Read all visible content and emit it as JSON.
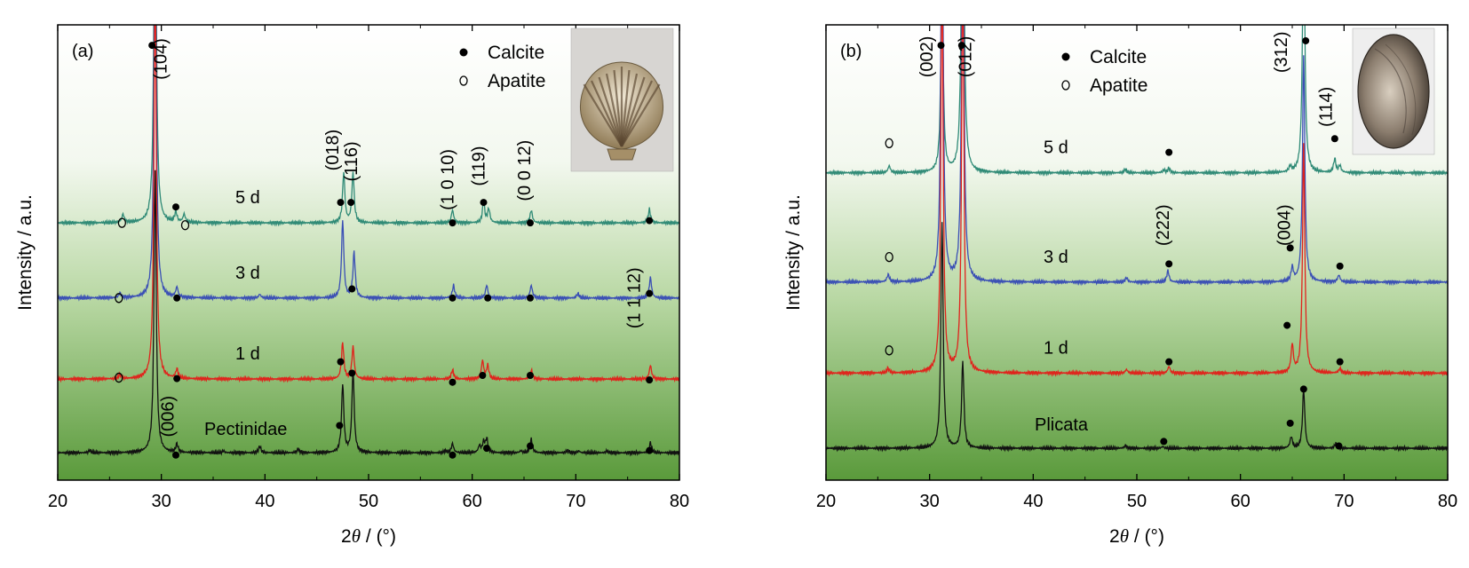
{
  "chart_data": [
    {
      "type": "line",
      "panel_label": "(a)",
      "x_range": [
        20,
        80
      ],
      "x_ticks": [
        "20",
        "30",
        "40",
        "50",
        "60",
        "70",
        "80"
      ],
      "xlabel_symbol": "2",
      "xlabel_theta": "θ",
      "xlabel_unit": " / (°)",
      "ylabel": "Intensity / a.u.",
      "grid": false,
      "legend_position": "top-right",
      "legend": {
        "filled_label": "Calcite",
        "open_label": "Apatite"
      },
      "series": [
        {
          "name": "5 d",
          "color": "#2f8a76",
          "baseline_frac": 0.435,
          "peaks": [
            [
              26.3,
              0.018
            ],
            [
              29.4,
              0.9
            ],
            [
              31.4,
              0.022
            ],
            [
              32.2,
              0.018
            ],
            [
              47.6,
              0.11
            ],
            [
              48.5,
              0.11
            ],
            [
              58.1,
              0.028
            ],
            [
              61.1,
              0.045
            ],
            [
              61.6,
              0.03
            ],
            [
              65.7,
              0.028
            ],
            [
              77.1,
              0.03
            ]
          ]
        },
        {
          "name": "3 d",
          "color": "#3a4fb5",
          "baseline_frac": 0.6,
          "peaks": [
            [
              26.0,
              0.01
            ],
            [
              29.4,
              0.9
            ],
            [
              31.5,
              0.022
            ],
            [
              39.5,
              0.008
            ],
            [
              47.5,
              0.17
            ],
            [
              48.6,
              0.1
            ],
            [
              58.2,
              0.028
            ],
            [
              61.4,
              0.028
            ],
            [
              65.7,
              0.028
            ],
            [
              70.2,
              0.01
            ],
            [
              77.2,
              0.045
            ]
          ]
        },
        {
          "name": "1 d",
          "color": "#e0231c",
          "baseline_frac": 0.778,
          "peaks": [
            [
              26.0,
              0.01
            ],
            [
              29.4,
              0.9
            ],
            [
              31.5,
              0.02
            ],
            [
              47.5,
              0.08
            ],
            [
              48.5,
              0.07
            ],
            [
              58.1,
              0.02
            ],
            [
              61.0,
              0.04
            ],
            [
              61.5,
              0.03
            ],
            [
              65.7,
              0.02
            ],
            [
              77.2,
              0.03
            ]
          ]
        },
        {
          "name": "Pectinidae",
          "color": "#111111",
          "baseline_frac": 0.94,
          "peaks": [
            [
              23.1,
              0.005
            ],
            [
              29.4,
              0.62
            ],
            [
              31.5,
              0.018
            ],
            [
              36.0,
              0.004
            ],
            [
              39.5,
              0.014
            ],
            [
              43.2,
              0.008
            ],
            [
              47.5,
              0.15
            ],
            [
              48.5,
              0.18
            ],
            [
              57.4,
              0.004
            ],
            [
              58.1,
              0.02
            ],
            [
              60.7,
              0.015
            ],
            [
              61.1,
              0.022
            ],
            [
              61.4,
              0.03
            ],
            [
              64.7,
              0.004
            ],
            [
              65.7,
              0.03
            ],
            [
              69.2,
              0.005
            ],
            [
              70.3,
              0.004
            ],
            [
              73.0,
              0.004
            ],
            [
              77.2,
              0.022
            ]
          ]
        }
      ],
      "hkl_labels": [
        {
          "text": "(104)",
          "x": 30.5,
          "y_frac": 0.075
        },
        {
          "text": "(018)",
          "x": 47.1,
          "y_frac": 0.275
        },
        {
          "text": "(116)",
          "x": 48.9,
          "y_frac": 0.3
        },
        {
          "text": "(1 0 10)",
          "x": 58.2,
          "y_frac": 0.34
        },
        {
          "text": "(119)",
          "x": 61.2,
          "y_frac": 0.31
        },
        {
          "text": "(0 0 12)",
          "x": 65.6,
          "y_frac": 0.32
        },
        {
          "text": "(1 1 12)",
          "x": 76.2,
          "y_frac": 0.6
        },
        {
          "text": "(006)",
          "x": 31.2,
          "y_frac": 0.86
        }
      ],
      "calcite_markers": [
        [
          29.1,
          0.045
        ],
        [
          31.4,
          0.4
        ],
        [
          47.3,
          0.39
        ],
        [
          48.3,
          0.39
        ],
        [
          58.1,
          0.435
        ],
        [
          61.1,
          0.39
        ],
        [
          65.6,
          0.435
        ],
        [
          77.1,
          0.43
        ],
        [
          31.5,
          0.6
        ],
        [
          48.4,
          0.58
        ],
        [
          58.1,
          0.6
        ],
        [
          61.5,
          0.6
        ],
        [
          65.6,
          0.6
        ],
        [
          77.1,
          0.59
        ],
        [
          31.5,
          0.777
        ],
        [
          47.3,
          0.74
        ],
        [
          48.4,
          0.765
        ],
        [
          58.1,
          0.785
        ],
        [
          61.0,
          0.77
        ],
        [
          65.6,
          0.77
        ],
        [
          77.1,
          0.78
        ],
        [
          31.4,
          0.945
        ],
        [
          47.2,
          0.88
        ],
        [
          58.1,
          0.945
        ],
        [
          61.4,
          0.93
        ],
        [
          65.6,
          0.925
        ],
        [
          77.1,
          0.935
        ]
      ],
      "apatite_markers": [
        [
          26.2,
          0.435
        ],
        [
          32.3,
          0.44
        ],
        [
          25.9,
          0.6
        ],
        [
          25.9,
          0.775
        ]
      ]
    },
    {
      "type": "line",
      "panel_label": "(b)",
      "x_range": [
        20,
        80
      ],
      "x_ticks": [
        "20",
        "30",
        "40",
        "50",
        "60",
        "70",
        "80"
      ],
      "xlabel_symbol": "2",
      "xlabel_theta": "θ",
      "xlabel_unit": " / (°)",
      "ylabel": "Intensity / a.u.",
      "grid": false,
      "legend_position": "top",
      "legend": {
        "filled_label": "Calcite",
        "open_label": "Apatite"
      },
      "series": [
        {
          "name": "5 d",
          "color": "#2f8a76",
          "baseline_frac": 0.325,
          "peaks": [
            [
              26.1,
              0.015
            ],
            [
              31.2,
              0.45
            ],
            [
              33.2,
              0.95
            ],
            [
              48.9,
              0.008
            ],
            [
              52.6,
              0.006
            ],
            [
              53.1,
              0.01
            ],
            [
              64.8,
              0.012
            ],
            [
              66.1,
              0.58
            ],
            [
              69.1,
              0.03
            ],
            [
              69.6,
              0.015
            ]
          ]
        },
        {
          "name": "3 d",
          "color": "#3a4fb5",
          "baseline_frac": 0.565,
          "peaks": [
            [
              26.0,
              0.016
            ],
            [
              31.2,
              0.95
            ],
            [
              33.2,
              0.95
            ],
            [
              49.0,
              0.01
            ],
            [
              53.0,
              0.025
            ],
            [
              65.0,
              0.03
            ],
            [
              66.1,
              0.5
            ],
            [
              69.5,
              0.015
            ]
          ]
        },
        {
          "name": "1 d",
          "color": "#e0231c",
          "baseline_frac": 0.765,
          "peaks": [
            [
              26.0,
              0.01
            ],
            [
              31.2,
              0.9
            ],
            [
              33.2,
              0.9
            ],
            [
              49.0,
              0.008
            ],
            [
              53.1,
              0.015
            ],
            [
              65.0,
              0.06
            ],
            [
              66.1,
              0.5
            ],
            [
              69.6,
              0.01
            ]
          ]
        },
        {
          "name": "Plicata",
          "color": "#111111",
          "baseline_frac": 0.93,
          "peaks": [
            [
              31.2,
              0.5
            ],
            [
              33.2,
              0.19
            ],
            [
              48.9,
              0.006
            ],
            [
              52.5,
              0.004
            ],
            [
              64.9,
              0.025
            ],
            [
              66.1,
              0.13
            ],
            [
              69.2,
              0.01
            ]
          ]
        }
      ],
      "hkl_labels": [
        {
          "text": "(002)",
          "x": 30.3,
          "y_frac": 0.07
        },
        {
          "text": "(012)",
          "x": 34.0,
          "y_frac": 0.07
        },
        {
          "text": "(312)",
          "x": 64.5,
          "y_frac": 0.06
        },
        {
          "text": "(114)",
          "x": 68.8,
          "y_frac": 0.18
        },
        {
          "text": "(222)",
          "x": 53.1,
          "y_frac": 0.44
        },
        {
          "text": "(004)",
          "x": 64.8,
          "y_frac": 0.44
        }
      ],
      "calcite_markers": [
        [
          31.1,
          0.045
        ],
        [
          33.1,
          0.045
        ],
        [
          66.3,
          0.035
        ],
        [
          69.1,
          0.25
        ],
        [
          53.1,
          0.28
        ],
        [
          53.1,
          0.525
        ],
        [
          64.8,
          0.49
        ],
        [
          69.6,
          0.53
        ],
        [
          53.1,
          0.74
        ],
        [
          64.5,
          0.66
        ],
        [
          69.6,
          0.74
        ],
        [
          52.6,
          0.915
        ],
        [
          64.8,
          0.875
        ],
        [
          66.1,
          0.8
        ],
        [
          69.5,
          0.925
        ]
      ],
      "apatite_markers": [
        [
          26.1,
          0.26
        ],
        [
          26.1,
          0.51
        ],
        [
          26.1,
          0.715
        ]
      ]
    }
  ]
}
